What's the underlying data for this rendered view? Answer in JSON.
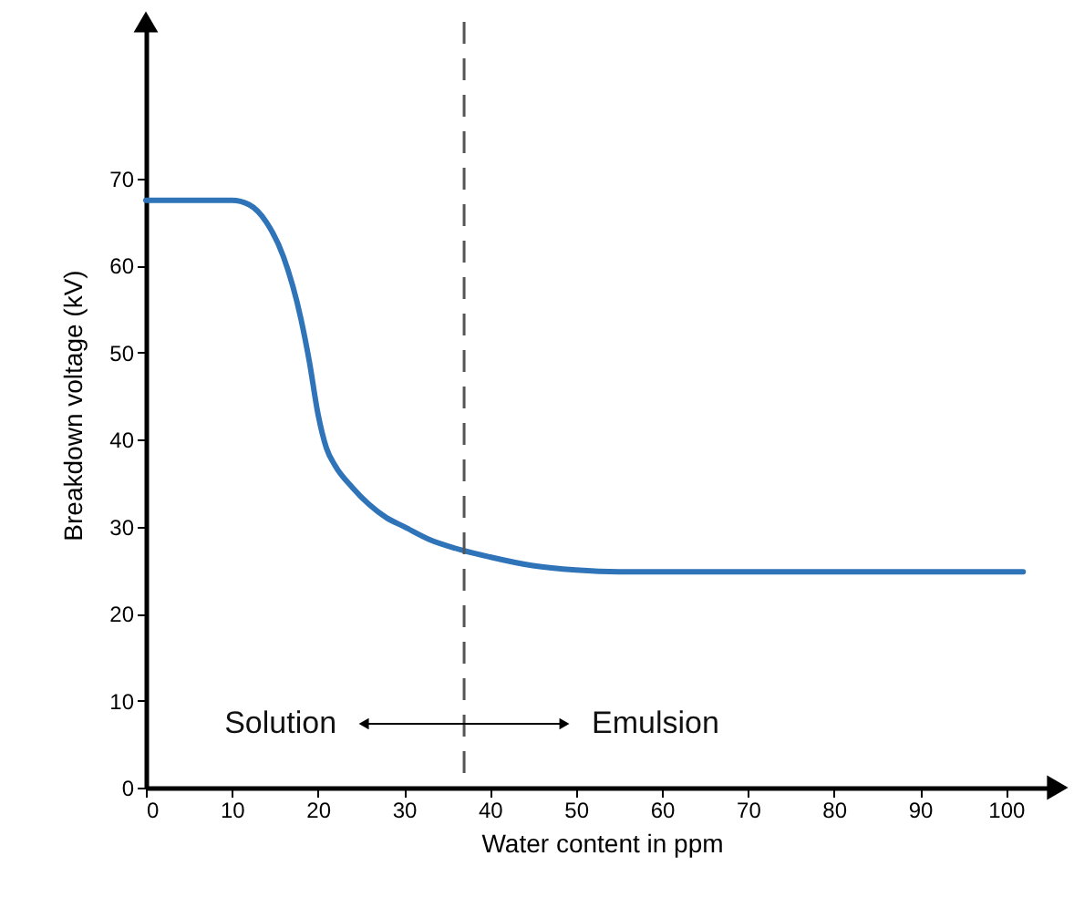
{
  "chart_data": {
    "type": "line",
    "xlabel": "Water content in ppm",
    "ylabel": "Breakdown voltage (kV)",
    "x": [
      0,
      5,
      10,
      12,
      14,
      16,
      18,
      19,
      20,
      21,
      22,
      24,
      26,
      28,
      30,
      33,
      36,
      40,
      45,
      50,
      55,
      60,
      80,
      102
    ],
    "series": [
      {
        "color": "#2f73b8",
        "values": [
          67.5,
          67.5,
          67.5,
          67,
          65,
          61,
          54,
          49,
          43,
          39,
          37,
          34.5,
          32.5,
          31,
          30,
          28.5,
          27.5,
          26.5,
          25.5,
          25,
          24.8,
          24.8,
          24.8,
          24.8
        ]
      }
    ],
    "xlim": [
      0,
      106
    ],
    "ylim": [
      0,
      88
    ],
    "xticks": [
      0,
      10,
      20,
      30,
      40,
      50,
      60,
      70,
      80,
      90,
      100
    ],
    "yticks": [
      0,
      10,
      20,
      30,
      40,
      50,
      60,
      70
    ],
    "marker": "none",
    "line_style": "solid",
    "ref_lines": [
      {
        "axis": "x",
        "value": 37,
        "line_style": "dashed",
        "color": "#555555"
      }
    ],
    "annotations": [
      "Solution",
      "Emulsion"
    ]
  }
}
